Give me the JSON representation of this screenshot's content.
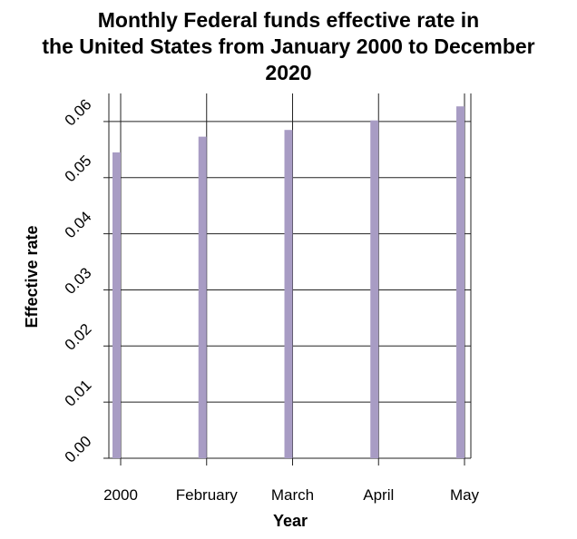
{
  "chart_data": {
    "type": "bar",
    "title_lines": [
      "Monthly Federal funds effective rate in",
      "the United States from January 2000 to December",
      "2020"
    ],
    "xlabel": "Year",
    "ylabel": "Effective rate",
    "categories": [
      "2000",
      "February",
      "March",
      "April",
      "May"
    ],
    "values": [
      0.0545,
      0.0573,
      0.0585,
      0.0602,
      0.0627
    ],
    "yticks": [
      "0.00",
      "0.01",
      "0.02",
      "0.03",
      "0.04",
      "0.05",
      "0.06"
    ],
    "ylim": [
      0,
      0.065
    ],
    "grid": true,
    "bar_color": "#a89cc4"
  }
}
